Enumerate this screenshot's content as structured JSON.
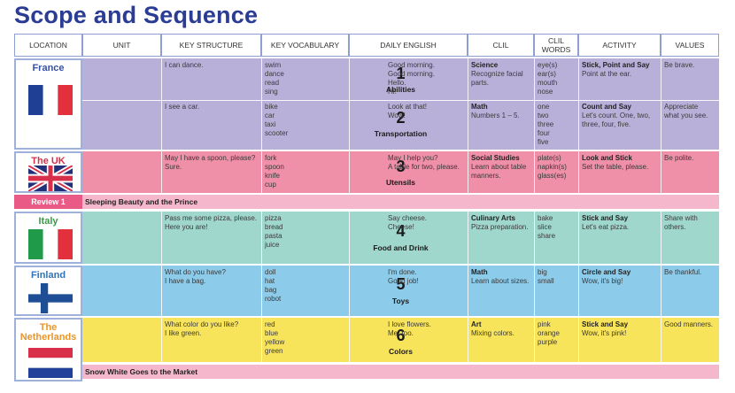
{
  "title": "Scope and Sequence",
  "headers": [
    "LOCATION",
    "UNIT",
    "KEY STRUCTURE",
    "KEY VOCABULARY",
    "DAILY ENGLISH",
    "CLIL",
    "CLIL\nWORDS",
    "ACTIVITY",
    "VALUES"
  ],
  "colors": {
    "purple": "#b9b0da",
    "pink": "#ef8fa8",
    "teal": "#9fd7cd",
    "blue": "#8ccbea",
    "yellow": "#f8e45a",
    "review_pink": "#e95a87",
    "story_pink": "#f4b7cc",
    "title_blue": "#2a3c93"
  },
  "countries": [
    {
      "name": "France",
      "color": "#3551a4"
    },
    {
      "name": "The UK",
      "color": "#d8304a"
    },
    {
      "name": "Italy",
      "color": "#3a9a47"
    },
    {
      "name": "Finland",
      "color": "#2f73b8"
    },
    {
      "name": "The\nNetherlands",
      "color": "#e8962a"
    }
  ],
  "units": [
    {
      "num": "1",
      "name": "Abilities",
      "structure": "I can dance.",
      "vocab": "swim\ndance\nread\nsing",
      "daily": "Good morning.\nGood morning.\nHello.\nHi!",
      "clil_subject": "Science",
      "clil_desc": "Recognize facial\nparts.",
      "clil_words": "eye(s)\near(s)\nmouth\nnose",
      "activity_title": "Stick, Point  and Say",
      "activity_desc": "Point at the ear.",
      "value": "Be brave."
    },
    {
      "num": "2",
      "name": "Transportation",
      "structure": "I see a car.",
      "vocab": "bike\ncar\ntaxi\nscooter",
      "daily": "Look at that!\nWow!",
      "clil_subject": "Math",
      "clil_desc": "Numbers 1 – 5.",
      "clil_words": "one\ntwo\nthree\nfour\nfive",
      "activity_title": "Count and Say",
      "activity_desc": "Let's count.  One, two,\nthree, four, five.",
      "value": "Appreciate\nwhat you see."
    },
    {
      "num": "3",
      "name": "Utensils",
      "structure": "May I have a spoon, please?\nSure.",
      "vocab": "fork\nspoon\nknife\ncup",
      "daily": "May I help you?\nA table for two, please.",
      "clil_subject": "Social Studies",
      "clil_desc": "Learn about table\nmanners.",
      "clil_words": "plate(s)\nnapkin(s)\nglass(es)",
      "activity_title": "Look and Stick",
      "activity_desc": "Set the table, please.",
      "value": "Be polite."
    },
    {
      "num": "4",
      "name": "Food and Drink",
      "structure": "Pass me some pizza, please.\nHere you are!",
      "vocab": "pizza\nbread\npasta\njuice",
      "daily": "Say cheese.\nCheese!",
      "clil_subject": "Culinary Arts",
      "clil_desc": "Pizza preparation.",
      "clil_words": "bake\nslice\nshare",
      "activity_title": "Stick and Say",
      "activity_desc": "Let's eat pizza.",
      "value": "Share with\nothers."
    },
    {
      "num": "5",
      "name": "Toys",
      "structure": "What do you have?\nI have a bag.",
      "vocab": "doll\nhat\nbag\nrobot",
      "daily": "I'm done.\nGood job!",
      "clil_subject": "Math",
      "clil_desc": "Learn about sizes.",
      "clil_words": "big\nsmall",
      "activity_title": "Circle and Say",
      "activity_desc": "Wow, it's big!",
      "value": "Be thankful."
    },
    {
      "num": "6",
      "name": "Colors",
      "structure": "What color do you like?\nI like green.",
      "vocab": "red\nblue\nyellow\ngreen",
      "daily": "I love flowers.\nMe, too.",
      "clil_subject": "Art",
      "clil_desc": "Mixing colors.",
      "clil_words": "pink\norange\npurple",
      "activity_title": "Stick and Say",
      "activity_desc": "Wow, it's pink!",
      "value": "Good manners."
    }
  ],
  "review": {
    "label": "Review 1",
    "story": "Sleeping Beauty and the Prince"
  },
  "story2": "Snow White Goes to the Market"
}
